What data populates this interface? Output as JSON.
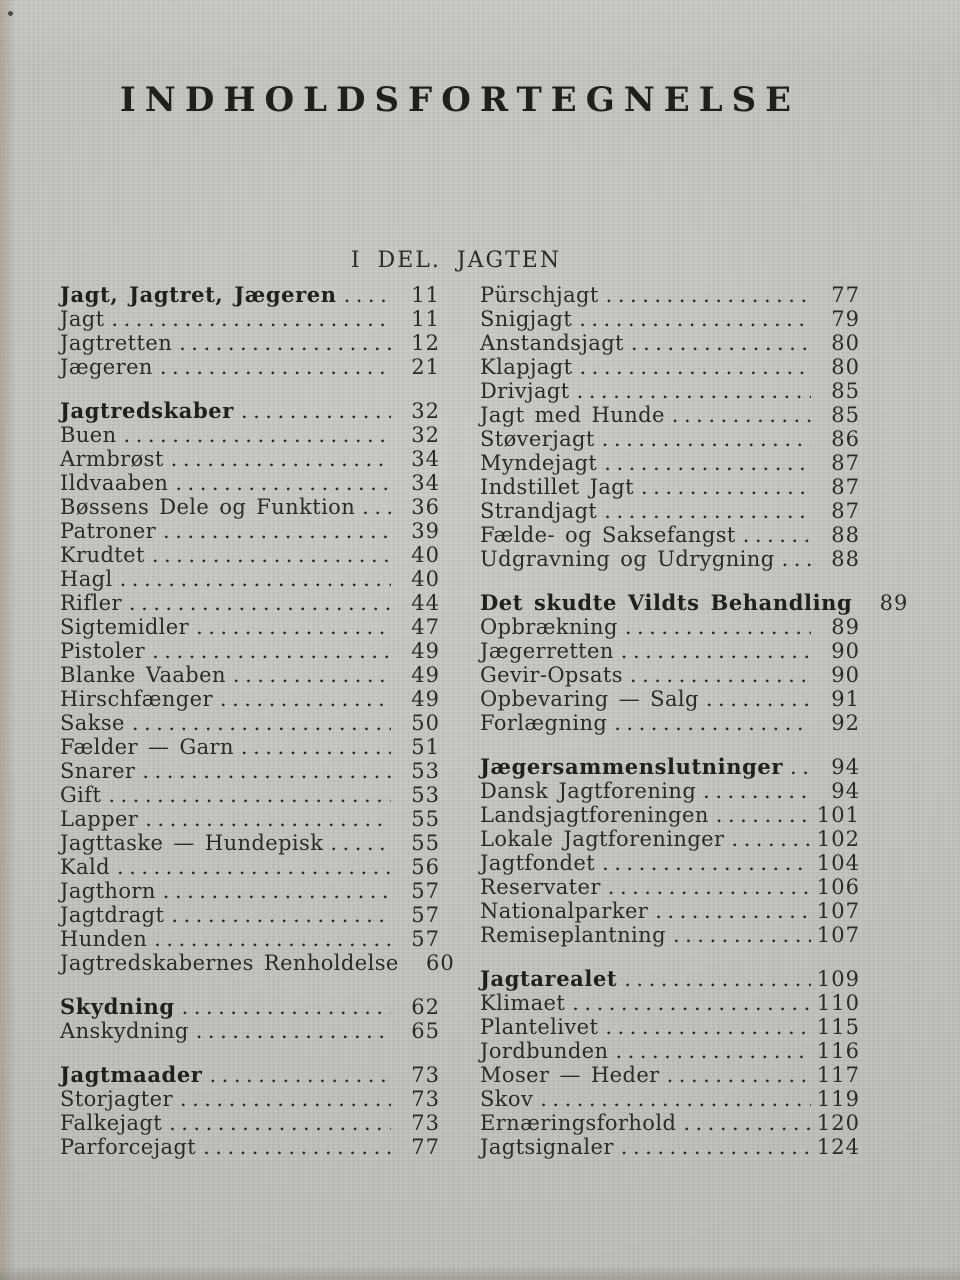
{
  "page": {
    "title": "INDHOLDSFORTEGNELSE",
    "part_heading": "I DEL. JAGTEN"
  },
  "colors": {
    "paper": "#c8c6c1",
    "ink": "#2b2a24",
    "ink_bold": "#201f1a"
  },
  "toc": {
    "left_column": [
      {
        "entries": [
          {
            "label": "Jagt, Jagtret, Jægeren",
            "page": "11",
            "bold": true
          },
          {
            "label": "Jagt",
            "page": "11",
            "bold": false
          },
          {
            "label": "Jagtretten",
            "page": "12",
            "bold": false
          },
          {
            "label": "Jægeren",
            "page": "21",
            "bold": false
          }
        ]
      },
      {
        "entries": [
          {
            "label": "Jagtredskaber",
            "page": "32",
            "bold": true
          },
          {
            "label": "Buen",
            "page": "32",
            "bold": false
          },
          {
            "label": "Armbrøst",
            "page": "34",
            "bold": false
          },
          {
            "label": "Ildvaaben",
            "page": "34",
            "bold": false
          },
          {
            "label": "Bøssens Dele og Funktion",
            "page": "36",
            "bold": false
          },
          {
            "label": "Patroner",
            "page": "39",
            "bold": false
          },
          {
            "label": "Krudtet",
            "page": "40",
            "bold": false
          },
          {
            "label": "Hagl",
            "page": "40",
            "bold": false
          },
          {
            "label": "Rifler",
            "page": "44",
            "bold": false
          },
          {
            "label": "Sigtemidler",
            "page": "47",
            "bold": false
          },
          {
            "label": "Pistoler",
            "page": "49",
            "bold": false
          },
          {
            "label": "Blanke Vaaben",
            "page": "49",
            "bold": false
          },
          {
            "label": "Hirschfænger",
            "page": "49",
            "bold": false
          },
          {
            "label": "Sakse",
            "page": "50",
            "bold": false
          },
          {
            "label": "Fælder — Garn",
            "page": "51",
            "bold": false
          },
          {
            "label": "Snarer",
            "page": "53",
            "bold": false
          },
          {
            "label": "Gift",
            "page": "53",
            "bold": false
          },
          {
            "label": "Lapper",
            "page": "55",
            "bold": false
          },
          {
            "label": "Jagttaske — Hundepisk",
            "page": "55",
            "bold": false
          },
          {
            "label": "Kald",
            "page": "56",
            "bold": false
          },
          {
            "label": "Jagthorn",
            "page": "57",
            "bold": false
          },
          {
            "label": "Jagtdragt",
            "page": "57",
            "bold": false
          },
          {
            "label": "Hunden",
            "page": "57",
            "bold": false
          },
          {
            "label": "Jagtredskabernes Renholdelse",
            "page": "60",
            "bold": false
          }
        ]
      },
      {
        "entries": [
          {
            "label": "Skydning",
            "page": "62",
            "bold": true
          },
          {
            "label": "Anskydning",
            "page": "65",
            "bold": false
          }
        ]
      },
      {
        "entries": [
          {
            "label": "Jagtmaader",
            "page": "73",
            "bold": true
          },
          {
            "label": "Storjagter",
            "page": "73",
            "bold": false
          },
          {
            "label": "Falkejagt",
            "page": "73",
            "bold": false
          },
          {
            "label": "Parforcejagt",
            "page": "77",
            "bold": false
          }
        ]
      }
    ],
    "right_column": [
      {
        "entries": [
          {
            "label": "Pürschjagt",
            "page": "77",
            "bold": false
          },
          {
            "label": "Snigjagt",
            "page": "79",
            "bold": false
          },
          {
            "label": "Anstandsjagt",
            "page": "80",
            "bold": false
          },
          {
            "label": "Klapjagt",
            "page": "80",
            "bold": false
          },
          {
            "label": "Drivjagt",
            "page": "85",
            "bold": false
          },
          {
            "label": "Jagt med Hunde",
            "page": "85",
            "bold": false
          },
          {
            "label": "Støverjagt",
            "page": "86",
            "bold": false
          },
          {
            "label": "Myndejagt",
            "page": "87",
            "bold": false
          },
          {
            "label": "Indstillet Jagt",
            "page": "87",
            "bold": false
          },
          {
            "label": "Strandjagt",
            "page": "87",
            "bold": false
          },
          {
            "label": "Fælde- og Saksefangst",
            "page": "88",
            "bold": false
          },
          {
            "label": "Udgravning og Udrygning",
            "page": "88",
            "bold": false
          }
        ]
      },
      {
        "entries": [
          {
            "label": "Det skudte Vildts Behandling",
            "page": "89",
            "bold": true
          },
          {
            "label": "Opbrækning",
            "page": "89",
            "bold": false
          },
          {
            "label": "Jægerretten",
            "page": "90",
            "bold": false
          },
          {
            "label": "Gevir-Opsats",
            "page": "90",
            "bold": false
          },
          {
            "label": "Opbevaring — Salg",
            "page": "91",
            "bold": false
          },
          {
            "label": "Forlægning",
            "page": "92",
            "bold": false
          }
        ]
      },
      {
        "entries": [
          {
            "label": "Jægersammenslutninger",
            "page": "94",
            "bold": true
          },
          {
            "label": "Dansk Jagtforening",
            "page": "94",
            "bold": false
          },
          {
            "label": "Landsjagtforeningen",
            "page": "101",
            "bold": false
          },
          {
            "label": "Lokale Jagtforeninger",
            "page": "102",
            "bold": false
          },
          {
            "label": "Jagtfondet",
            "page": "104",
            "bold": false
          },
          {
            "label": "Reservater",
            "page": "106",
            "bold": false
          },
          {
            "label": "Nationalparker",
            "page": "107",
            "bold": false
          },
          {
            "label": "Remiseplantning",
            "page": "107",
            "bold": false
          }
        ]
      },
      {
        "entries": [
          {
            "label": "Jagtarealet",
            "page": "109",
            "bold": true
          },
          {
            "label": "Klimaet",
            "page": "110",
            "bold": false
          },
          {
            "label": "Plantelivet",
            "page": "115",
            "bold": false
          },
          {
            "label": "Jordbunden",
            "page": "116",
            "bold": false
          },
          {
            "label": "Moser — Heder",
            "page": "117",
            "bold": false
          },
          {
            "label": "Skov",
            "page": "119",
            "bold": false
          },
          {
            "label": "Ernæringsforhold",
            "page": "120",
            "bold": false
          },
          {
            "label": "Jagtsignaler",
            "page": "124",
            "bold": false
          }
        ]
      }
    ]
  }
}
